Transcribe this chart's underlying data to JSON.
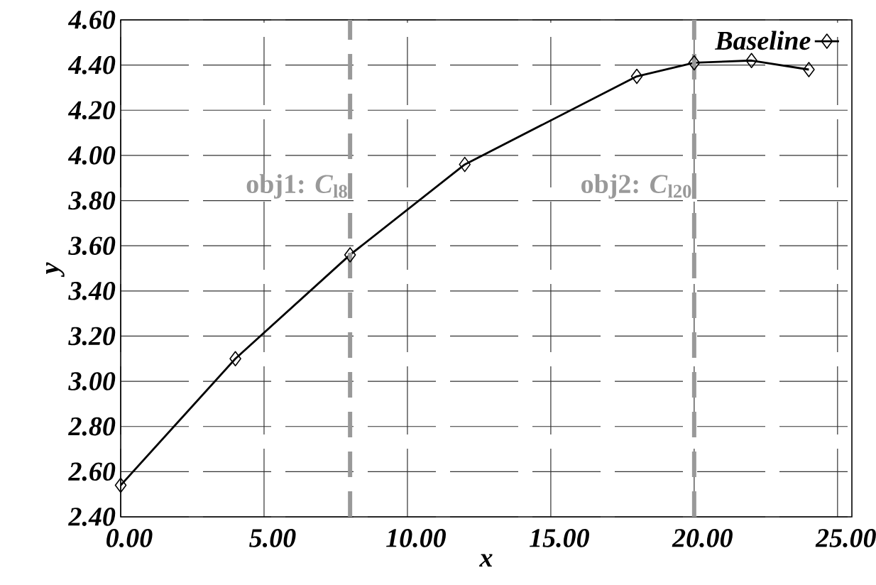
{
  "chart_data": {
    "type": "line",
    "xlabel": "x",
    "ylabel": "y",
    "x": [
      0,
      4,
      8,
      12,
      18,
      20,
      22,
      24
    ],
    "series": [
      {
        "name": "Baseline",
        "color": "#000000",
        "values": [
          2.54,
          3.1,
          3.56,
          3.96,
          4.35,
          4.41,
          4.42,
          4.38
        ]
      }
    ],
    "xlim": [
      0,
      25.5
    ],
    "ylim": [
      2.4,
      4.6
    ],
    "xticks": [
      {
        "value": 0,
        "label": "0.00"
      },
      {
        "value": 5,
        "label": "5.00"
      },
      {
        "value": 10,
        "label": "10.00"
      },
      {
        "value": 15,
        "label": "15.00"
      },
      {
        "value": 20,
        "label": "20.00"
      },
      {
        "value": 25,
        "label": "25.00"
      }
    ],
    "yticks": [
      {
        "value": 2.4,
        "label": "2.40"
      },
      {
        "value": 2.6,
        "label": "2.60"
      },
      {
        "value": 2.8,
        "label": "2.80"
      },
      {
        "value": 3.0,
        "label": "3.00"
      },
      {
        "value": 3.2,
        "label": "3.20"
      },
      {
        "value": 3.4,
        "label": "3.40"
      },
      {
        "value": 3.6,
        "label": "3.60"
      },
      {
        "value": 3.8,
        "label": "3.80"
      },
      {
        "value": 4.0,
        "label": "4.00"
      },
      {
        "value": 4.2,
        "label": "4.20"
      },
      {
        "value": 4.4,
        "label": "4.40"
      },
      {
        "value": 4.6,
        "label": "4.60"
      }
    ],
    "ref_lines": [
      {
        "axis": "x",
        "value": 8,
        "label": "obj1: *C*$_{l8}$",
        "color": "#999999",
        "line_style": "dashed"
      },
      {
        "axis": "x",
        "value": 20,
        "label": "obj2: *C*$_{l20}$",
        "color": "#999999",
        "line_style": "dashed"
      }
    ],
    "grid": true,
    "legend": "top right",
    "marker": "diamond",
    "line_style": "solid"
  }
}
